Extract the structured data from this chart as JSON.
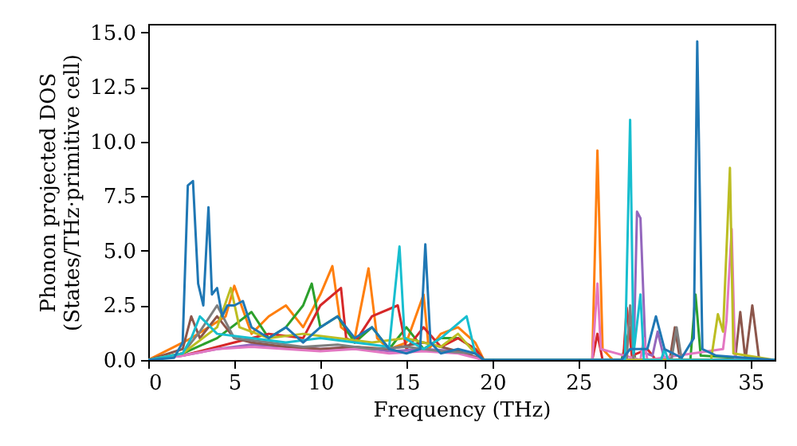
{
  "chart_data": {
    "type": "line",
    "xlabel": "Frequency (THz)",
    "ylabel": "Phonon projected DOS\n(States/THz·primitive cell)",
    "xlim": [
      0,
      36.4
    ],
    "xticks": [
      0,
      5,
      10,
      15,
      20,
      25,
      30,
      35
    ],
    "ylim": [
      0,
      15.4
    ],
    "yticks": [
      {
        "value": 0,
        "label": "0.0"
      },
      {
        "value": 2.5,
        "label": "2.5"
      },
      {
        "value": 5,
        "label": "5.0"
      },
      {
        "value": 7.5,
        "label": "7.5"
      },
      {
        "value": 10,
        "label": "10.0"
      },
      {
        "value": 12.5,
        "label": "12.5"
      },
      {
        "value": 15,
        "label": "15.0"
      }
    ],
    "grid": false,
    "marker": "none",
    "line_style": "solid",
    "series": [
      {
        "color": "#ff7f0e",
        "x": [
          0,
          1.5,
          2.5,
          3.5,
          4.5,
          5,
          6,
          7,
          8,
          9,
          10,
          10.7,
          11.2,
          12,
          12.8,
          13.3,
          14,
          15,
          16,
          16.3,
          17,
          18,
          19,
          19.5,
          25.8,
          26.1,
          26.4,
          27,
          36.4
        ],
        "values": [
          0,
          0.6,
          1.0,
          1.5,
          2.0,
          3.4,
          1.2,
          2.0,
          2.5,
          1.5,
          3.0,
          4.3,
          1.5,
          1.0,
          4.2,
          1.0,
          0.5,
          0.8,
          3.0,
          0.5,
          1.2,
          1.5,
          0.8,
          0,
          0,
          9.6,
          0.5,
          0,
          0
        ]
      },
      {
        "color": "#2ca02c",
        "x": [
          0,
          2,
          4,
          6,
          7,
          8,
          9,
          9.5,
          10,
          11,
          12,
          13,
          14,
          15,
          16,
          17,
          18,
          19,
          19.5,
          27.5,
          28,
          28.3,
          31.5,
          31.8,
          32.1,
          36.4
        ],
        "values": [
          0,
          0.3,
          1.0,
          2.2,
          1.0,
          1.5,
          2.5,
          3.5,
          1.5,
          2.0,
          0.8,
          1.5,
          0.5,
          1.5,
          0.5,
          1.0,
          1.0,
          0.5,
          0,
          0,
          1.5,
          0,
          0,
          3.0,
          0.2,
          0
        ]
      },
      {
        "color": "#d62728",
        "x": [
          0,
          2,
          5,
          7,
          9,
          10,
          11.2,
          11.5,
          12,
          13,
          14.5,
          15,
          16,
          17,
          18,
          19,
          19.5,
          25.8,
          26.1,
          26.4,
          27.6,
          27.8,
          28.1,
          29,
          29.5,
          36.4
        ],
        "values": [
          0,
          0.2,
          0.8,
          1.2,
          1.0,
          2.5,
          3.3,
          1.0,
          0.8,
          2.0,
          2.5,
          0.5,
          1.5,
          0.6,
          1.0,
          0.5,
          0,
          0,
          1.2,
          0,
          0,
          2.4,
          0.2,
          0.5,
          0,
          0
        ]
      },
      {
        "color": "#9467bd",
        "x": [
          0,
          2,
          4,
          6,
          8,
          10,
          12,
          14,
          16,
          18,
          19.5,
          28.2,
          28.4,
          28.6,
          28.9,
          29.3,
          29.6,
          30,
          36.4
        ],
        "values": [
          0,
          0.2,
          0.5,
          0.7,
          0.6,
          0.5,
          0.6,
          0.4,
          0.5,
          0.4,
          0,
          0,
          6.8,
          6.5,
          0.3,
          0.2,
          1.3,
          0,
          0
        ]
      },
      {
        "color": "#8c564b",
        "x": [
          0,
          2,
          2.5,
          3,
          4,
          5,
          6,
          8,
          10,
          12,
          14,
          16,
          18,
          19.5,
          30.3,
          30.6,
          30.9,
          34.1,
          34.4,
          34.7,
          35.1,
          35.5,
          36.4
        ],
        "values": [
          0,
          0.5,
          2.0,
          1.0,
          2.0,
          1.0,
          0.8,
          0.6,
          0.5,
          0.6,
          0.5,
          0.8,
          0.4,
          0,
          0,
          1.5,
          0,
          0,
          2.2,
          0,
          2.5,
          0,
          0
        ]
      },
      {
        "color": "#e377c2",
        "x": [
          0,
          2,
          4,
          6,
          8,
          10,
          12,
          14,
          16,
          18,
          19.5,
          25.8,
          26.1,
          26.3,
          28.6,
          28.8,
          29.0,
          33.4,
          33.6,
          33.9,
          34.1,
          36.4
        ],
        "values": [
          0,
          0.2,
          0.5,
          0.6,
          0.5,
          0.4,
          0.5,
          0.3,
          0.4,
          0.3,
          0,
          0,
          3.5,
          0.5,
          0,
          1.0,
          0,
          0.5,
          1.8,
          6.0,
          0,
          0
        ]
      },
      {
        "color": "#7f7f7f",
        "x": [
          0,
          2,
          3,
          4,
          5,
          7,
          9,
          11,
          13,
          15,
          17,
          19,
          19.5,
          27.8,
          28.0,
          28.2,
          30.4,
          30.7,
          31.0,
          36.4
        ],
        "values": [
          0,
          0.3,
          1.3,
          2.5,
          1.0,
          0.8,
          0.6,
          0.7,
          0.5,
          0.6,
          0.4,
          0.3,
          0,
          0,
          2.5,
          0,
          0,
          1.5,
          0,
          0
        ]
      },
      {
        "color": "#bcbd22",
        "x": [
          0,
          2,
          4,
          4.8,
          5.3,
          7,
          9,
          11,
          13,
          15,
          17,
          18,
          19,
          19.5,
          32.7,
          33.1,
          33.4,
          33.8,
          34.0,
          36.4
        ],
        "values": [
          0,
          0.3,
          1.5,
          3.3,
          1.5,
          1.0,
          1.2,
          1.0,
          0.8,
          1.0,
          0.6,
          1.2,
          0.3,
          0,
          0,
          2.1,
          1.3,
          8.8,
          0.3,
          0
        ]
      },
      {
        "color": "#17becf",
        "x": [
          0,
          2,
          2.5,
          3,
          4,
          6,
          8,
          10,
          12,
          14,
          14.6,
          14.9,
          16,
          17,
          18.5,
          19,
          19.5,
          27.7,
          28.0,
          28.2,
          28.6,
          28.8,
          29.8,
          30.0,
          30.2,
          36.4
        ],
        "values": [
          0,
          0.3,
          1.0,
          2.0,
          1.2,
          1.0,
          0.8,
          1.0,
          0.8,
          0.6,
          5.2,
          1.0,
          0.5,
          1.0,
          2.0,
          0.3,
          0,
          0,
          11.0,
          0.3,
          3.0,
          0,
          0,
          0.5,
          0,
          0
        ]
      },
      {
        "color": "#1f77b4",
        "x": [
          0,
          1.5,
          2.0,
          2.3,
          2.6,
          2.9,
          3.2,
          3.5,
          3.7,
          4.0,
          4.3,
          4.6,
          5,
          5.5,
          6,
          7,
          8,
          9,
          10,
          11,
          12,
          13,
          14,
          15,
          15.8,
          16.1,
          16.4,
          17,
          18,
          19,
          19.5,
          27.5,
          28,
          29,
          29.5,
          30,
          31,
          31.7,
          31.9,
          32.2,
          33,
          36.4
        ],
        "values": [
          0,
          0.1,
          0.8,
          8.0,
          8.2,
          3.5,
          2.5,
          7.0,
          3.0,
          3.3,
          2.0,
          2.5,
          2.5,
          2.7,
          1.5,
          1.0,
          1.5,
          0.8,
          1.5,
          2.0,
          1.0,
          1.5,
          0.5,
          0.3,
          0.5,
          5.3,
          0.8,
          0.3,
          0.5,
          0.3,
          0,
          0,
          0.5,
          0.5,
          2.0,
          0.5,
          0.1,
          1.0,
          14.6,
          0.5,
          0.2,
          0
        ]
      }
    ]
  }
}
